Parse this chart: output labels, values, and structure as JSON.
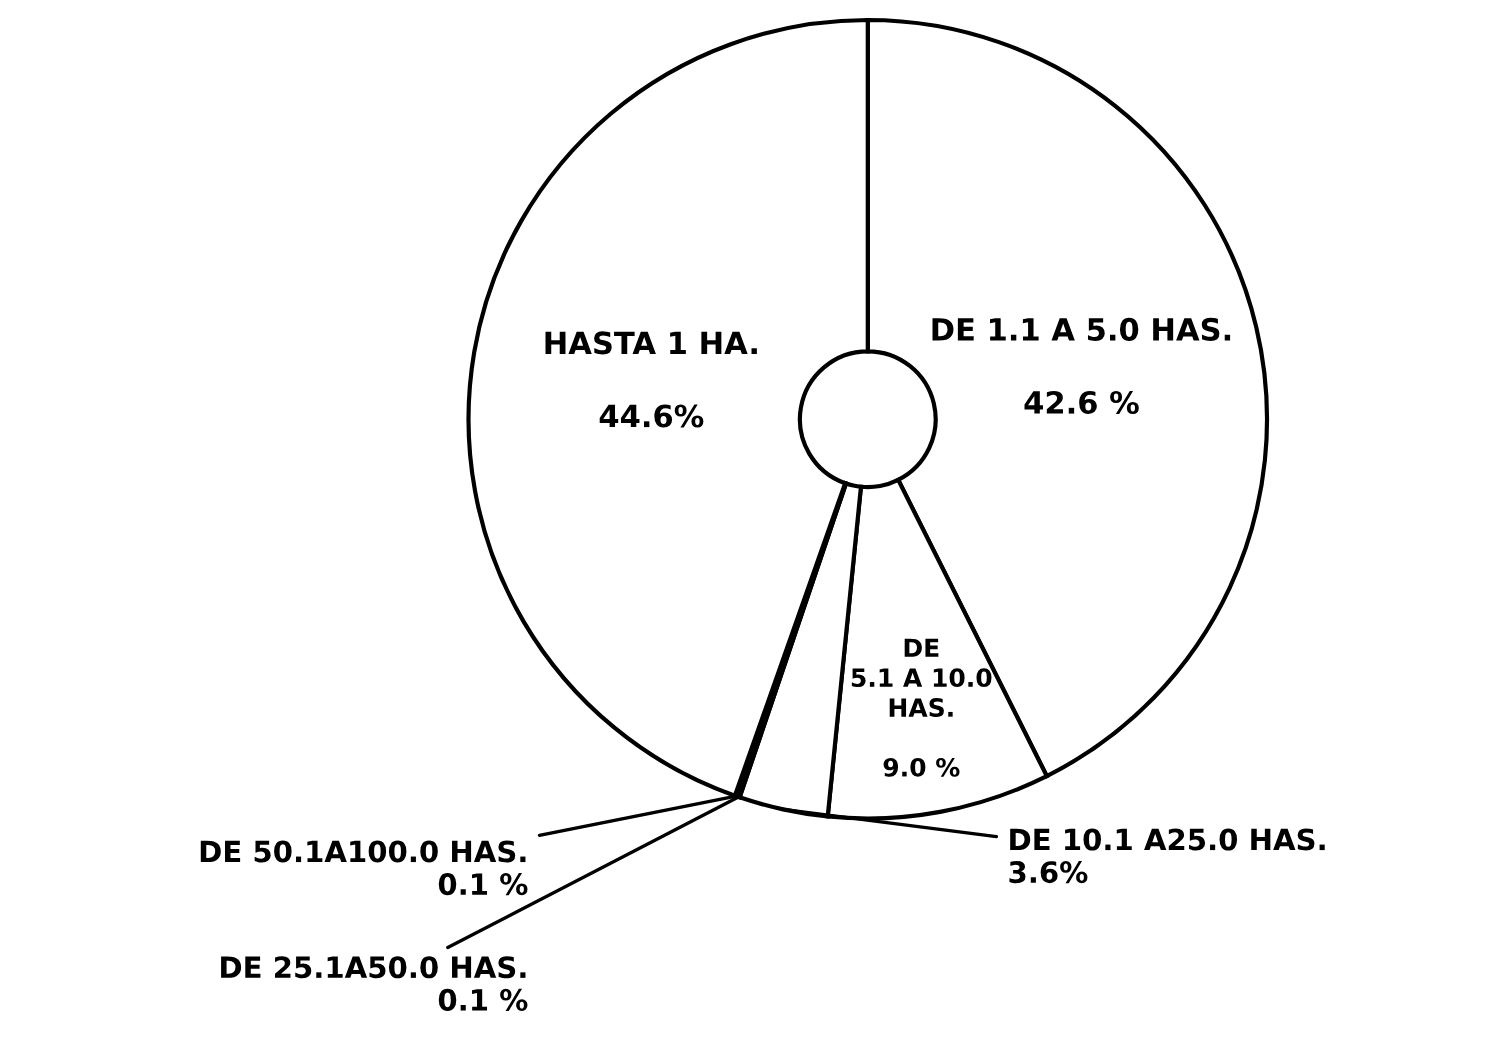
{
  "chart_data": {
    "type": "donut",
    "categories": [
      "DE 1.1 A 5.0 HAS.",
      "DE\n5.1 A 10.0\nHAS.",
      "DE\n10.1\nA25.0\nHAS.",
      "DE 25.1A50.0 HAS.",
      "DE 50.1A100.0 HAS.",
      "HASTA 1 HA."
    ],
    "values": [
      42.6,
      9.0,
      3.6,
      0.1,
      0.1,
      44.6
    ],
    "value_labels": [
      "42.6 %",
      "9.0 %",
      "3.6%",
      "0.1 %",
      "0.1 %",
      "44.6%"
    ],
    "colors": [
      "#ffffff",
      "#ffffff",
      "#ffffff",
      "#ffffff",
      "#ffffff",
      "#ffffff"
    ]
  }
}
